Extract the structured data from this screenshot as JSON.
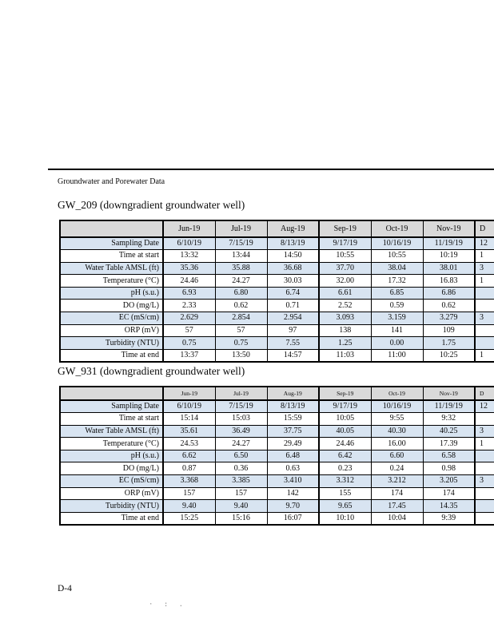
{
  "page": {
    "running_header": "Groundwater and Porewater Data",
    "page_number": "D-4",
    "scan_artifact": "· : ."
  },
  "colors": {
    "header_row_bg": "#d9d9d9",
    "shaded_row_bg": "#d8e4f1",
    "border": "#000000",
    "text": "#0a0a0a",
    "page_bg": "#ffffff"
  },
  "tables": [
    {
      "title": "GW_209 (downgradient groundwater well)",
      "columns": [
        "Jun-19",
        "Jul-19",
        "Aug-19",
        "Sep-19",
        "Oct-19",
        "Nov-19"
      ],
      "cutoff_column": {
        "header": "D",
        "cells": [
          "12",
          "1",
          "3",
          "1",
          "",
          "",
          "3",
          "",
          "",
          "1"
        ]
      },
      "rows": [
        {
          "label": "Sampling Date",
          "values": [
            "6/10/19",
            "7/15/19",
            "8/13/19",
            "9/17/19",
            "10/16/19",
            "11/19/19"
          ]
        },
        {
          "label": "Time at start",
          "values": [
            "13:32",
            "13:44",
            "14:50",
            "10:55",
            "10:55",
            "10:19"
          ]
        },
        {
          "label": "Water Table AMSL (ft)",
          "values": [
            "35.36",
            "35.88",
            "36.68",
            "37.70",
            "38.04",
            "38.01"
          ]
        },
        {
          "label": "Temperature (°C)",
          "values": [
            "24.46",
            "24.27",
            "30.03",
            "32.00",
            "17.32",
            "16.83"
          ]
        },
        {
          "label": "pH (s.u.)",
          "values": [
            "6.93",
            "6.80",
            "6.74",
            "6.61",
            "6.85",
            "6.86"
          ]
        },
        {
          "label": "DO (mg/L)",
          "values": [
            "2.33",
            "0.62",
            "0.71",
            "2.52",
            "0.59",
            "0.62"
          ]
        },
        {
          "label": "EC (mS/cm)",
          "values": [
            "2.629",
            "2.854",
            "2.954",
            "3.093",
            "3.159",
            "3.279"
          ]
        },
        {
          "label": "ORP (mV)",
          "values": [
            "57",
            "57",
            "97",
            "138",
            "141",
            "109"
          ]
        },
        {
          "label": "Turbidity (NTU)",
          "values": [
            "0.75",
            "0.75",
            "7.55",
            "1.25",
            "0.00",
            "1.75"
          ]
        },
        {
          "label": "Time at end",
          "values": [
            "13:37",
            "13:50",
            "14:57",
            "11:03",
            "11:00",
            "10:25"
          ]
        }
      ]
    },
    {
      "title": "GW_931 (downgradient groundwater well)",
      "columns": [
        "Jun-19",
        "Jul-19",
        "Aug-19",
        "Sep-19",
        "Oct-19",
        "Nov-19"
      ],
      "cutoff_column": {
        "header": "D",
        "cells": [
          "12",
          "",
          "3",
          "1",
          "",
          "",
          "3",
          "",
          "",
          ""
        ]
      },
      "rows": [
        {
          "label": "Sampling Date",
          "values": [
            "6/10/19",
            "7/15/19",
            "8/13/19",
            "9/17/19",
            "10/16/19",
            "11/19/19"
          ]
        },
        {
          "label": "Time at start",
          "values": [
            "15:14",
            "15:03",
            "15:59",
            "10:05",
            "9:55",
            "9:32"
          ]
        },
        {
          "label": "Water Table AMSL (ft)",
          "values": [
            "35.61",
            "36.49",
            "37.75",
            "40.05",
            "40.30",
            "40.25"
          ]
        },
        {
          "label": "Temperature (°C)",
          "values": [
            "24.53",
            "24.27",
            "29.49",
            "24.46",
            "16.00",
            "17.39"
          ]
        },
        {
          "label": "pH (s.u.)",
          "values": [
            "6.62",
            "6.50",
            "6.48",
            "6.42",
            "6.60",
            "6.58"
          ]
        },
        {
          "label": "DO (mg/L)",
          "values": [
            "0.87",
            "0.36",
            "0.63",
            "0.23",
            "0.24",
            "0.98"
          ]
        },
        {
          "label": "EC (mS/cm)",
          "values": [
            "3.368",
            "3.385",
            "3.410",
            "3.312",
            "3.212",
            "3.205"
          ]
        },
        {
          "label": "ORP (mV)",
          "values": [
            "157",
            "157",
            "142",
            "155",
            "174",
            "174"
          ]
        },
        {
          "label": "Turbidity (NTU)",
          "values": [
            "9.40",
            "9.40",
            "9.70",
            "9.65",
            "17.45",
            "14.35"
          ]
        },
        {
          "label": "Time at end",
          "values": [
            "15:25",
            "15:16",
            "16:07",
            "10:10",
            "10:04",
            "9:39"
          ]
        }
      ]
    }
  ]
}
